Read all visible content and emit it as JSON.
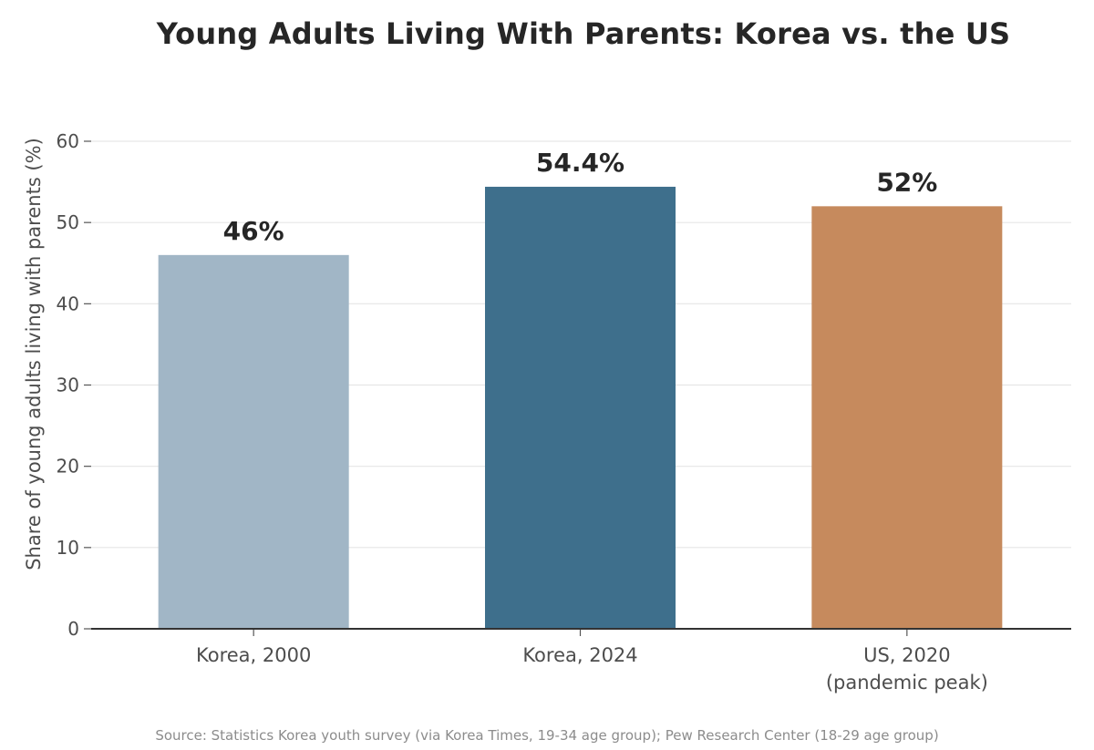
{
  "chart_data": {
    "type": "bar",
    "title": "Young Adults Living With Parents: Korea vs. the US",
    "xlabel": "",
    "ylabel": "Share of young adults living with parents (%)",
    "categories": [
      [
        "Korea, 2000"
      ],
      [
        "Korea, 2024"
      ],
      [
        "US, 2020",
        "(pandemic peak)"
      ]
    ],
    "values": [
      46,
      54.4,
      52
    ],
    "data_labels": [
      "46%",
      "54.4%",
      "52%"
    ],
    "bar_colors": [
      "#a1b6c6",
      "#3e6f8c",
      "#c68a5d"
    ],
    "ylim": [
      0,
      60
    ],
    "yticks": [
      0,
      10,
      20,
      30,
      40,
      50,
      60
    ],
    "grid": true,
    "legend": "none"
  },
  "footer": {
    "source": "Source: Statistics Korea youth survey (via Korea Times, 19-34 age group); Pew Research Center (18-29 age group)"
  }
}
